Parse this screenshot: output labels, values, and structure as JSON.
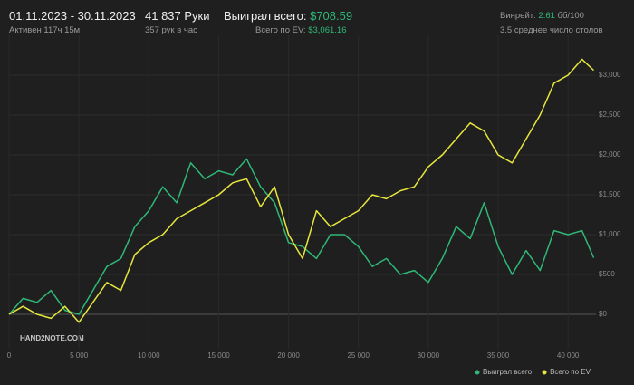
{
  "header": {
    "period": "01.11.2023 - 30.11.2023",
    "active": "Активен 117ч 15м",
    "hands": "41 837 Руки",
    "hands_per_hour": "357 рук в час",
    "won_label": "Выиграл всего:",
    "won_value": "$708.59",
    "ev_label": "Всего по EV:",
    "ev_value": "$3,061.16",
    "winrate_label": "Винрейт:",
    "winrate_value": "2.61",
    "winrate_unit": "бб/100",
    "tables": "3.5 среднее число столов"
  },
  "chart_data": {
    "type": "line",
    "watermark": "HAND2NOTE.COM",
    "grid": true,
    "legend": "bottom-right",
    "xlim": [
      0,
      42000
    ],
    "xticks": [
      0,
      {
        "value": 5000,
        "label": "5 000"
      },
      {
        "value": 10000,
        "label": "10 000"
      },
      {
        "value": 15000,
        "label": "15 000"
      },
      {
        "value": 20000,
        "label": "20 000"
      },
      {
        "value": 25000,
        "label": "25 000"
      },
      {
        "value": 30000,
        "label": "30 000"
      },
      {
        "value": 35000,
        "label": "35 000"
      },
      {
        "value": 40000,
        "label": "40 000"
      }
    ],
    "ylim": [
      -500,
      3500
    ],
    "yticks": [
      {
        "value": 0,
        "label": "$0"
      },
      {
        "value": 500,
        "label": "$500"
      },
      {
        "value": 1000,
        "label": "$1,000"
      },
      {
        "value": 1500,
        "label": "$1,500"
      },
      {
        "value": 2000,
        "label": "$2,000"
      },
      {
        "value": 2500,
        "label": "$2,500"
      },
      {
        "value": 3000,
        "label": "$3,000"
      }
    ],
    "x": [
      0,
      1000,
      2000,
      3000,
      4000,
      5000,
      6000,
      7000,
      8000,
      9000,
      10000,
      11000,
      12000,
      13000,
      14000,
      15000,
      16000,
      17000,
      18000,
      19000,
      20000,
      21000,
      22000,
      23000,
      24000,
      25000,
      26000,
      27000,
      28000,
      29000,
      30000,
      31000,
      32000,
      33000,
      34000,
      35000,
      36000,
      37000,
      38000,
      39000,
      40000,
      41000,
      41837
    ],
    "series": [
      {
        "name": "Выиграл всего",
        "color": "#2fb877",
        "values": [
          0,
          200,
          150,
          300,
          50,
          0,
          300,
          600,
          700,
          1100,
          1300,
          1600,
          1400,
          1900,
          1700,
          1800,
          1750,
          1950,
          1600,
          1400,
          900,
          850,
          700,
          1000,
          1000,
          850,
          600,
          700,
          500,
          550,
          400,
          700,
          1100,
          950,
          1400,
          850,
          500,
          800,
          550,
          1050,
          1000,
          1050,
          708.59
        ]
      },
      {
        "name": "Всего по EV",
        "color": "#e6e63c",
        "values": [
          0,
          100,
          0,
          -50,
          100,
          -100,
          150,
          400,
          300,
          750,
          900,
          1000,
          1200,
          1300,
          1400,
          1500,
          1650,
          1700,
          1350,
          1600,
          1000,
          700,
          1300,
          1100,
          1200,
          1300,
          1500,
          1450,
          1550,
          1600,
          1850,
          2000,
          2200,
          2400,
          2300,
          2000,
          1900,
          2200,
          2500,
          2900,
          3000,
          3200,
          3061.16
        ]
      }
    ]
  }
}
